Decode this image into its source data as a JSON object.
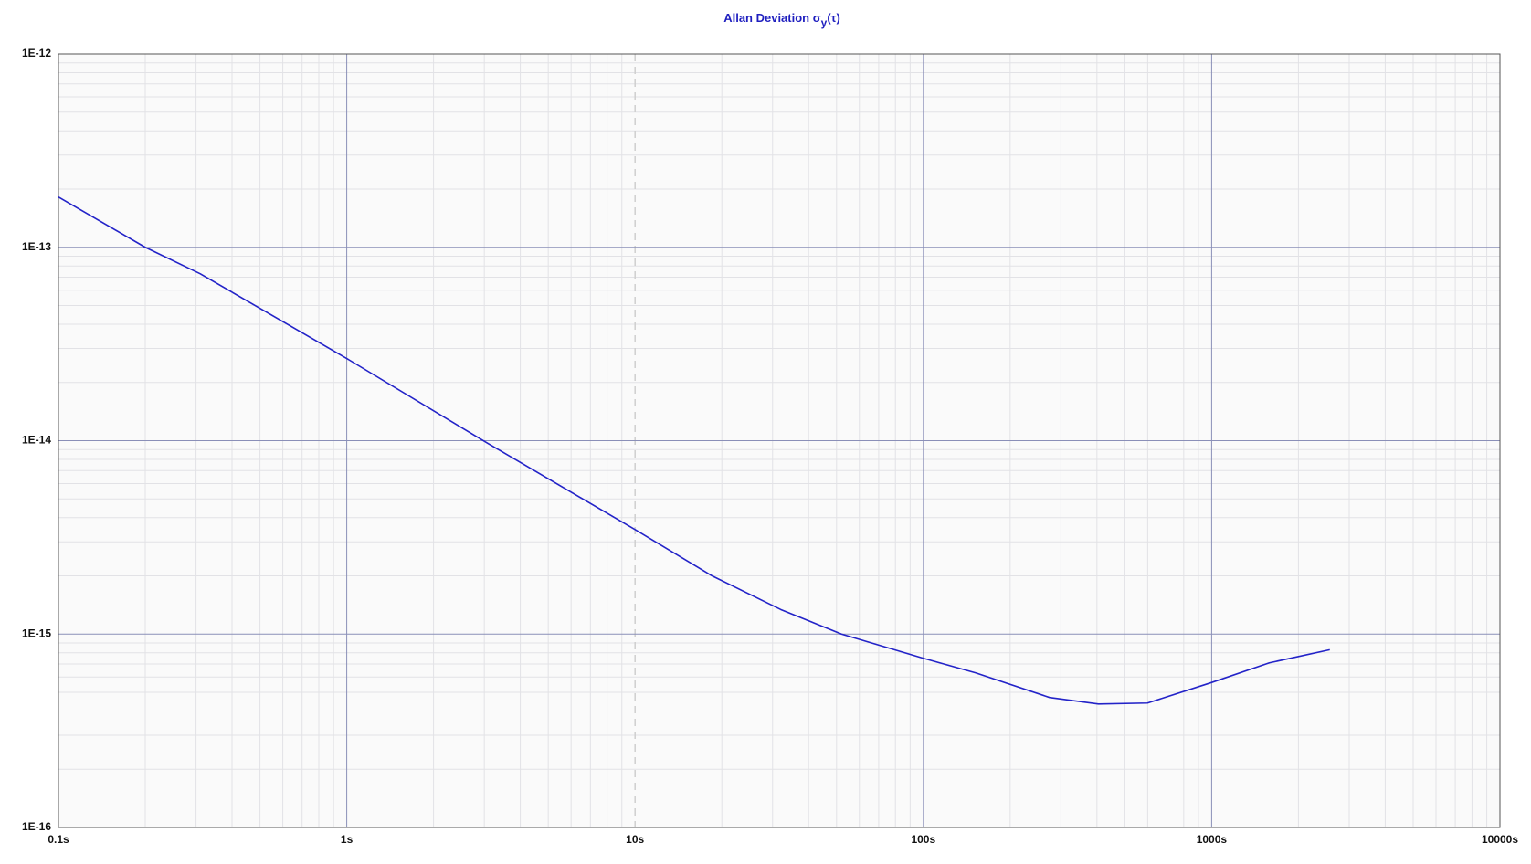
{
  "chart_data": {
    "type": "line",
    "title": "Allan Deviation σ",
    "title_subscript": "y",
    "title_suffix": "(τ)",
    "x": [
      0.1,
      0.2,
      0.31,
      1,
      3.08,
      10,
      18.5,
      32,
      52,
      100,
      152,
      274,
      405,
      599,
      993,
      1585,
      2570
    ],
    "values": [
      1.82e-13,
      1e-13,
      7.3e-14,
      2.66e-14,
      9.7e-15,
      3.47e-15,
      2e-15,
      1.34e-15,
      1e-15,
      7.5e-16,
      6.3e-16,
      4.7e-16,
      4.35e-16,
      4.4e-16,
      5.6e-16,
      7.1e-16,
      8.3e-16
    ],
    "color": "#2323c8",
    "xlim": [
      0.1,
      10000
    ],
    "ylim": [
      1e-16,
      1e-12
    ],
    "xscale": "log",
    "yscale": "log",
    "xticks": [
      {
        "value": 0.1,
        "label": "0.1s"
      },
      {
        "value": 1,
        "label": "1s"
      },
      {
        "value": 10,
        "label": "10s"
      },
      {
        "value": 100,
        "label": "100s"
      },
      {
        "value": 1000,
        "label": "1000s"
      },
      {
        "value": 10000,
        "label": "10000s"
      }
    ],
    "yticks": [
      {
        "value": 1e-16,
        "label": "1E-16"
      },
      {
        "value": 1e-15,
        "label": "1E-15"
      },
      {
        "value": 1e-14,
        "label": "1E-14"
      },
      {
        "value": 1e-13,
        "label": "1E-13"
      },
      {
        "value": 1e-12,
        "label": "1E-12"
      }
    ],
    "grid": true,
    "minor_grid": true
  }
}
